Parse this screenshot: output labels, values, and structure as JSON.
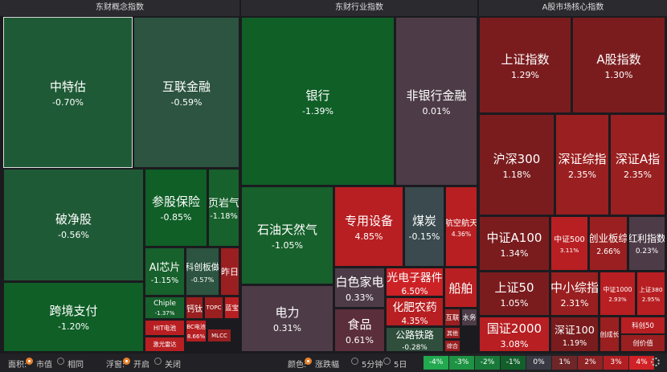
{
  "panels": [
    {
      "title": "东财概念指数",
      "tiles": [
        {
          "name": "中特估",
          "change": "-0.70%"
        },
        {
          "name": "互联金融",
          "change": "-0.59%"
        },
        {
          "name": "破净股",
          "change": "-0.56%"
        },
        {
          "name": "参股保险",
          "change": "-0.85%"
        },
        {
          "name": "页岩气",
          "change": "-1.18%"
        },
        {
          "name": "跨境支付",
          "change": "-1.20%"
        },
        {
          "name": "AI芯片",
          "change": "-1.15%"
        },
        {
          "name": "科创板做",
          "change": "-0.57%"
        },
        {
          "name": "昨日"
        },
        {
          "name": "Chiple",
          "change": "-1.37%"
        },
        {
          "name": "钙钛"
        },
        {
          "name": "TOPC"
        },
        {
          "name": "蓝宝"
        },
        {
          "name": "HIT电池"
        },
        {
          "name": "BC电池",
          "change": "8.66%"
        },
        {
          "name": "MLCC"
        },
        {
          "name": "激光雷达"
        }
      ]
    },
    {
      "title": "东财行业指数",
      "tiles": [
        {
          "name": "银行",
          "change": "-1.39%"
        },
        {
          "name": "非银行金融",
          "change": "0.01%"
        },
        {
          "name": "石油天然气",
          "change": "-1.05%"
        },
        {
          "name": "专用设备",
          "change": "4.85%"
        },
        {
          "name": "煤炭",
          "change": "-0.15%"
        },
        {
          "name": "航空航天",
          "change": "4.36%"
        },
        {
          "name": "电力",
          "change": "0.31%"
        },
        {
          "name": "白色家电",
          "change": "0.33%"
        },
        {
          "name": "光电子器件",
          "change": "6.50%"
        },
        {
          "name": "船舶"
        },
        {
          "name": "食品",
          "change": "0.61%"
        },
        {
          "name": "化肥农药",
          "change": "4.35%"
        },
        {
          "name": "互联"
        },
        {
          "name": "水务"
        },
        {
          "name": "公路铁路",
          "change": "-0.28%"
        },
        {
          "name": "其他"
        },
        {
          "name": "综合"
        }
      ]
    },
    {
      "title": "A股市场核心指数",
      "tiles": [
        {
          "name": "上证指数",
          "change": "1.29%"
        },
        {
          "name": "A股指数",
          "change": "1.30%"
        },
        {
          "name": "沪深300",
          "change": "1.18%"
        },
        {
          "name": "深证综指",
          "change": "2.35%"
        },
        {
          "name": "深证A指",
          "change": "2.35%"
        },
        {
          "name": "中证A100",
          "change": "1.34%"
        },
        {
          "name": "中证500",
          "change": "3.11%"
        },
        {
          "name": "创业板综",
          "change": "2.66%"
        },
        {
          "name": "红利指数",
          "change": "0.23%"
        },
        {
          "name": "上证50",
          "change": "1.05%"
        },
        {
          "name": "中小综指",
          "change": "2.31%"
        },
        {
          "name": "中证1000",
          "change": "2.93%"
        },
        {
          "name": "上证380",
          "change": "2.95%"
        },
        {
          "name": "国证2000",
          "change": "3.08%"
        },
        {
          "name": "深证100",
          "change": "1.19%"
        },
        {
          "name": "创成长"
        },
        {
          "name": "科创50"
        },
        {
          "name": "创价值"
        }
      ]
    }
  ],
  "controls": [
    {
      "label": "面积:",
      "options": [
        "市值",
        "相同"
      ]
    },
    {
      "label": "浮窗:",
      "options": [
        "开启",
        "关闭"
      ]
    },
    {
      "label": "颜色:",
      "options": [
        "涨跌幅",
        "5分钟",
        "5日"
      ]
    }
  ],
  "legend": [
    "-4%",
    "-3%",
    "-2%",
    "-1%",
    "0%",
    "1%",
    "2%",
    "3%",
    "4%"
  ]
}
